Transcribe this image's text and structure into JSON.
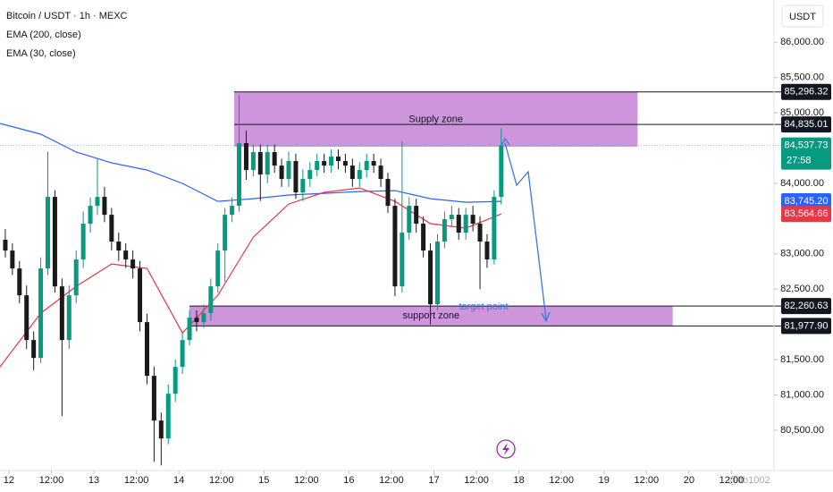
{
  "chart_data": {
    "type": "candlestick",
    "title": "Bitcoin / USDT · 1h · MEXC",
    "currency": "USDT",
    "up_color": "#089981",
    "down_color": "#1a1a1a",
    "xlim": [
      -2.5,
      216
    ],
    "ylim": [
      79940,
      86600
    ],
    "grid": false,
    "xticks": [
      {
        "value": 0,
        "label": "12"
      },
      {
        "value": 12,
        "label": "12:00"
      },
      {
        "value": 24,
        "label": "13"
      },
      {
        "value": 36,
        "label": "12:00"
      },
      {
        "value": 48,
        "label": "14"
      },
      {
        "value": 60,
        "label": "12:00"
      },
      {
        "value": 72,
        "label": "15"
      },
      {
        "value": 84,
        "label": "12:00"
      },
      {
        "value": 96,
        "label": "16"
      },
      {
        "value": 108,
        "label": "12:00"
      },
      {
        "value": 120,
        "label": "17"
      },
      {
        "value": 132,
        "label": "12:00"
      },
      {
        "value": 144,
        "label": "18"
      },
      {
        "value": 156,
        "label": "12:00"
      },
      {
        "value": 168,
        "label": "19"
      },
      {
        "value": 180,
        "label": "12:00"
      },
      {
        "value": 192,
        "label": "20"
      },
      {
        "value": 204,
        "label": "12:00"
      }
    ],
    "yticks": [
      {
        "value": 86000,
        "label": "86,000.00"
      },
      {
        "value": 85500,
        "label": "85,500.00"
      },
      {
        "value": 85000,
        "label": "85,000.00"
      },
      {
        "value": 84000,
        "label": "84,000.00"
      },
      {
        "value": 83000,
        "label": "83,000.00"
      },
      {
        "value": 82500,
        "label": "82,500.00"
      },
      {
        "value": 81500,
        "label": "81,500.00"
      },
      {
        "value": 81000,
        "label": "81,000.00"
      },
      {
        "value": 80500,
        "label": "80,500.00"
      }
    ],
    "x": [
      -1,
      1,
      3,
      5,
      7,
      9,
      11,
      13,
      15,
      17,
      19,
      21,
      23,
      25,
      27,
      29,
      31,
      33,
      35,
      37,
      39,
      41,
      43,
      45,
      47,
      49,
      51,
      53,
      55,
      57,
      59,
      61,
      63,
      65,
      67,
      69,
      71,
      73,
      75,
      77,
      79,
      81,
      83,
      85,
      87,
      89,
      91,
      93,
      95,
      97,
      99,
      101,
      103,
      105,
      107,
      109,
      111,
      113,
      115,
      117,
      119,
      121,
      123,
      125,
      127,
      129,
      131,
      133,
      135,
      137,
      139
    ],
    "open": [
      83200,
      83047,
      82793,
      82412,
      81778,
      81524,
      82793,
      83808,
      82539,
      81778,
      82412,
      82920,
      83428,
      83681,
      83808,
      83554,
      83174,
      83047,
      82920,
      82793,
      82032,
      81270,
      80636,
      80382,
      81016,
      81397,
      81778,
      82095,
      82032,
      82159,
      82539,
      83047,
      83554,
      83681,
      84570,
      84189,
      84443,
      84125,
      84443,
      84252,
      84062,
      84316,
      83872,
      84062,
      84189,
      84316,
      84252,
      84379,
      84316,
      84252,
      84062,
      84189,
      84316,
      84252,
      84062,
      83681,
      82539,
      83301,
      83681,
      83428,
      83047,
      82285,
      83174,
      83491,
      83554,
      83301,
      83554,
      83428,
      83174,
      82920,
      83808
    ],
    "high": [
      83350,
      83150,
      82900,
      82550,
      81900,
      82950,
      84450,
      83900,
      82650,
      82550,
      83050,
      83600,
      83800,
      84350,
      83950,
      83650,
      83300,
      83150,
      83050,
      82900,
      82150,
      81400,
      80750,
      81150,
      81500,
      81900,
      82200,
      82200,
      82280,
      82650,
      83150,
      83650,
      83800,
      85250,
      84750,
      84550,
      84550,
      84550,
      84550,
      84350,
      84450,
      84420,
      84200,
      84300,
      84420,
      84420,
      84480,
      84480,
      84420,
      84350,
      84300,
      84420,
      84420,
      84350,
      84150,
      83780,
      84600,
      83800,
      83780,
      83530,
      83150,
      83280,
      83600,
      83680,
      83650,
      83650,
      83680,
      83530,
      83280,
      83900,
      84780
    ],
    "low": [
      82950,
      82700,
      82300,
      81650,
      81350,
      81450,
      82700,
      82450,
      80700,
      81650,
      82300,
      82800,
      83300,
      83550,
      83450,
      83050,
      82900,
      82800,
      82650,
      81900,
      81150,
      80050,
      80000,
      80300,
      80900,
      81300,
      81700,
      81900,
      81950,
      82050,
      82450,
      82600,
      83450,
      83600,
      84050,
      84100,
      83750,
      84000,
      84150,
      83950,
      83950,
      83780,
      83750,
      83950,
      84100,
      84150,
      84150,
      84200,
      84150,
      83950,
      83950,
      84080,
      84150,
      83950,
      83580,
      82400,
      82450,
      83200,
      83300,
      82950,
      82000,
      82200,
      83080,
      83380,
      83200,
      83200,
      83320,
      82500,
      82800,
      82850,
      83700
    ],
    "close": [
      83047,
      82793,
      82412,
      81778,
      81524,
      82793,
      83808,
      82539,
      81778,
      82412,
      82920,
      83428,
      83681,
      83808,
      83554,
      83174,
      83047,
      82920,
      82793,
      82032,
      81270,
      80636,
      80382,
      81016,
      81397,
      81778,
      82095,
      82032,
      82159,
      82539,
      83047,
      83554,
      83681,
      84570,
      84189,
      84443,
      84125,
      84443,
      84252,
      84062,
      84316,
      83872,
      84062,
      84189,
      84316,
      84252,
      84379,
      84316,
      84252,
      84062,
      84189,
      84316,
      84252,
      84062,
      83681,
      82539,
      83301,
      83681,
      83428,
      83047,
      82285,
      83174,
      83491,
      83554,
      83301,
      83554,
      83428,
      83174,
      82920,
      83808,
      84538
    ],
    "series": [
      {
        "name": "EMA (200, close)",
        "color": "#2962ff",
        "x": [
          -2.5,
          9,
          19,
          29,
          39,
          49,
          59,
          69,
          79,
          89,
          99,
          109,
          119,
          129,
          139
        ],
        "values": [
          84849,
          84697,
          84443,
          84290,
          84189,
          83999,
          83745,
          83783,
          83834,
          83859,
          83884,
          83897,
          83783,
          83732,
          83745
        ]
      },
      {
        "name": "EMA (30, close)",
        "color": "#e53946",
        "x": [
          -2.5,
          9,
          19,
          29,
          39,
          49,
          59,
          69,
          79,
          89,
          99,
          109,
          119,
          129,
          139
        ],
        "values": [
          81397,
          82159,
          82539,
          82857,
          82793,
          81879,
          82412,
          83237,
          83707,
          83872,
          83935,
          83745,
          83428,
          83364,
          83565
        ]
      }
    ],
    "zones": [
      {
        "label": "Supply zone",
        "color": "#c98ad9",
        "x": [
          63.6,
          177.5
        ],
        "y": [
          85296.32,
          84520
        ]
      },
      {
        "label": "support zone",
        "color": "#c98ad9",
        "x": [
          51,
          187.4
        ],
        "y": [
          82260.63,
          81977.9
        ]
      }
    ],
    "price_labels": [
      {
        "value": 85296.32,
        "label": "85,296.32",
        "color": "#131722",
        "line_from": 63.6
      },
      {
        "value": 84835.01,
        "label": "84,835.01",
        "color": "#131722",
        "line_from": 63.6
      },
      {
        "value": 84537.73,
        "label": "84,537.73",
        "color": "#089981",
        "line_style": "dashed",
        "countdown": "27:58"
      },
      {
        "value": 83745.2,
        "label": "83,745.20",
        "color": "#2962ff"
      },
      {
        "value": 83564.66,
        "label": "83,564.66",
        "color": "#e53946"
      },
      {
        "value": 82260.63,
        "label": "82,260.63",
        "color": "#131722",
        "line_from": 51
      },
      {
        "value": 81977.9,
        "label": "81,977.90",
        "color": "#131722",
        "line_from": 51
      }
    ],
    "annotation": "target point",
    "watermark": "@ltb1002"
  }
}
